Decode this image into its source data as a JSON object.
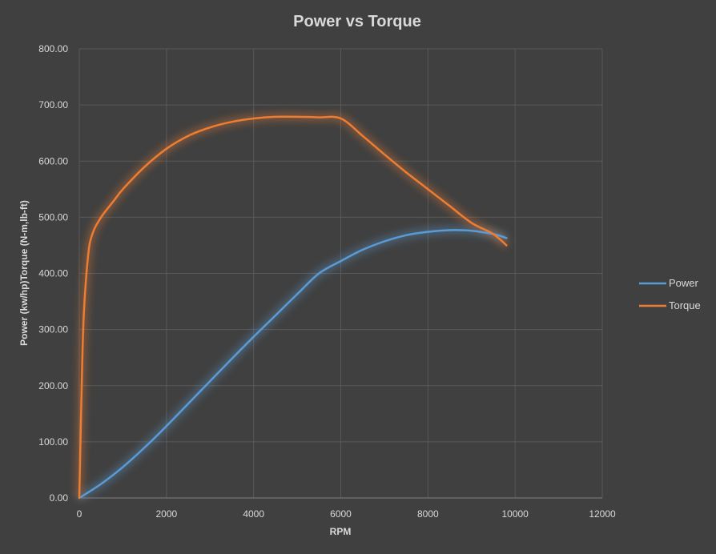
{
  "chart_data": {
    "type": "line",
    "title": "Power vs Torque",
    "xlabel": "RPM",
    "ylabel_lines": [
      "Power (kw/hp)",
      "Torque (N-m,lb-ft)"
    ],
    "xlim": [
      0,
      12000
    ],
    "ylim": [
      0,
      800
    ],
    "xticks": [
      "0",
      "2000",
      "4000",
      "6000",
      "8000",
      "10000",
      "12000"
    ],
    "yticks": [
      "0.00",
      "100.00",
      "200.00",
      "300.00",
      "400.00",
      "500.00",
      "600.00",
      "700.00",
      "800.00"
    ],
    "grid": true,
    "legend_position": "right",
    "series": [
      {
        "name": "Power",
        "color": "#5b9bd5",
        "x": [
          0,
          500,
          1000,
          1500,
          2000,
          2500,
          3000,
          3500,
          4000,
          4500,
          5000,
          5500,
          6000,
          6500,
          7000,
          7500,
          8000,
          8500,
          9000,
          9500,
          9800
        ],
        "y": [
          0,
          25,
          55,
          90,
          128,
          168,
          208,
          248,
          287,
          325,
          363,
          400,
          422,
          442,
          457,
          468,
          474,
          477,
          476,
          470,
          463
        ]
      },
      {
        "name": "Torque",
        "color": "#ed7d31",
        "x": [
          0,
          50,
          100,
          200,
          300,
          500,
          800,
          1000,
          1500,
          2000,
          2500,
          3000,
          3500,
          4000,
          4500,
          5000,
          5500,
          6000,
          6500,
          7000,
          7500,
          8000,
          8500,
          9000,
          9500,
          9800
        ],
        "y": [
          0,
          180,
          320,
          430,
          470,
          500,
          530,
          550,
          590,
          622,
          645,
          660,
          670,
          676,
          679,
          679,
          678,
          676,
          645,
          612,
          580,
          550,
          520,
          490,
          470,
          450
        ]
      }
    ]
  }
}
